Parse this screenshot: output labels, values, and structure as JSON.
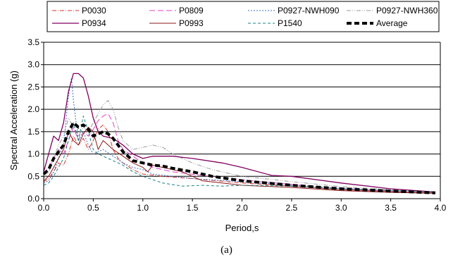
{
  "caption": "(a)",
  "chart_data": {
    "type": "line",
    "title": "",
    "xlabel": "Period,s",
    "ylabel": "Spectral  Acceleration (g)",
    "xlim": [
      0,
      4
    ],
    "ylim": [
      0,
      3.5
    ],
    "xticks": [
      "0.0",
      "0.5",
      "1.0",
      "1.5",
      "2.0",
      "2.5",
      "3.0",
      "3.5",
      "4.0"
    ],
    "yticks": [
      "0.0",
      "0.5",
      "1.0",
      "1.5",
      "2.0",
      "2.5",
      "3.0",
      "3.5"
    ],
    "grid": "horizontal",
    "legend_position": "top",
    "series": [
      {
        "name": "P0030",
        "color": "#d0342c",
        "dash": "6,2,1,2",
        "width": 1,
        "points": [
          [
            0,
            0.38
          ],
          [
            0.05,
            0.45
          ],
          [
            0.1,
            0.6
          ],
          [
            0.15,
            0.8
          ],
          [
            0.2,
            0.75
          ],
          [
            0.25,
            1.0
          ],
          [
            0.3,
            1.4
          ],
          [
            0.35,
            1.2
          ],
          [
            0.4,
            1.35
          ],
          [
            0.45,
            1.1
          ],
          [
            0.5,
            1.3
          ],
          [
            0.55,
            1.55
          ],
          [
            0.6,
            1.65
          ],
          [
            0.65,
            1.5
          ],
          [
            0.7,
            1.1
          ],
          [
            0.75,
            0.9
          ],
          [
            0.8,
            0.8
          ],
          [
            0.9,
            0.65
          ],
          [
            1.0,
            0.55
          ],
          [
            1.2,
            0.5
          ],
          [
            1.5,
            0.45
          ],
          [
            2.0,
            0.35
          ],
          [
            2.5,
            0.28
          ],
          [
            3.0,
            0.2
          ],
          [
            3.5,
            0.16
          ],
          [
            3.95,
            0.13
          ]
        ]
      },
      {
        "name": "P0809",
        "color": "#e040c8",
        "dash": "8,4",
        "width": 1,
        "points": [
          [
            0,
            0.55
          ],
          [
            0.05,
            0.7
          ],
          [
            0.1,
            0.9
          ],
          [
            0.15,
            1.1
          ],
          [
            0.2,
            1.0
          ],
          [
            0.25,
            1.3
          ],
          [
            0.3,
            1.6
          ],
          [
            0.35,
            1.3
          ],
          [
            0.4,
            1.5
          ],
          [
            0.45,
            1.4
          ],
          [
            0.5,
            1.55
          ],
          [
            0.55,
            1.75
          ],
          [
            0.6,
            1.85
          ],
          [
            0.65,
            1.9
          ],
          [
            0.7,
            1.7
          ],
          [
            0.75,
            1.3
          ],
          [
            0.8,
            1.1
          ],
          [
            0.9,
            0.95
          ],
          [
            1.0,
            0.8
          ],
          [
            1.1,
            0.7
          ],
          [
            1.3,
            0.6
          ],
          [
            1.6,
            0.52
          ],
          [
            2.0,
            0.42
          ],
          [
            2.5,
            0.32
          ],
          [
            3.0,
            0.22
          ],
          [
            3.5,
            0.17
          ],
          [
            3.95,
            0.14
          ]
        ]
      },
      {
        "name": "P0927-NWH090",
        "color": "#3a6fc4",
        "dash": "2,2",
        "width": 1,
        "points": [
          [
            0,
            0.35
          ],
          [
            0.05,
            0.4
          ],
          [
            0.1,
            0.6
          ],
          [
            0.15,
            0.9
          ],
          [
            0.2,
            1.2
          ],
          [
            0.25,
            2.3
          ],
          [
            0.28,
            2.7
          ],
          [
            0.3,
            2.2
          ],
          [
            0.35,
            1.3
          ],
          [
            0.4,
            1.5
          ],
          [
            0.45,
            1.2
          ],
          [
            0.5,
            1.0
          ],
          [
            0.6,
            1.1
          ],
          [
            0.7,
            0.95
          ],
          [
            0.8,
            0.8
          ],
          [
            0.9,
            0.7
          ],
          [
            1.0,
            0.65
          ],
          [
            1.1,
            0.55
          ],
          [
            1.3,
            0.5
          ],
          [
            1.5,
            0.45
          ],
          [
            2.0,
            0.38
          ],
          [
            2.5,
            0.3
          ],
          [
            3.0,
            0.23
          ],
          [
            3.5,
            0.18
          ],
          [
            3.95,
            0.15
          ]
        ]
      },
      {
        "name": "P0927-NWH360",
        "color": "#999999",
        "dash": "6,2,1,2,1,2",
        "width": 1,
        "points": [
          [
            0,
            0.45
          ],
          [
            0.05,
            0.6
          ],
          [
            0.1,
            0.9
          ],
          [
            0.15,
            1.2
          ],
          [
            0.2,
            1.4
          ],
          [
            0.25,
            1.8
          ],
          [
            0.3,
            1.6
          ],
          [
            0.35,
            1.4
          ],
          [
            0.4,
            1.6
          ],
          [
            0.45,
            1.5
          ],
          [
            0.5,
            1.7
          ],
          [
            0.55,
            1.9
          ],
          [
            0.6,
            2.1
          ],
          [
            0.65,
            2.2
          ],
          [
            0.7,
            2.0
          ],
          [
            0.75,
            1.6
          ],
          [
            0.8,
            1.3
          ],
          [
            0.9,
            1.1
          ],
          [
            1.0,
            1.15
          ],
          [
            1.1,
            1.2
          ],
          [
            1.2,
            1.15
          ],
          [
            1.3,
            1.0
          ],
          [
            1.5,
            0.8
          ],
          [
            1.7,
            0.65
          ],
          [
            2.0,
            0.5
          ],
          [
            2.5,
            0.38
          ],
          [
            3.0,
            0.27
          ],
          [
            3.5,
            0.2
          ],
          [
            3.95,
            0.15
          ]
        ]
      },
      {
        "name": "P0934",
        "color": "#800060",
        "dash": "",
        "width": 1.3,
        "points": [
          [
            0,
            0.6
          ],
          [
            0.05,
            1.0
          ],
          [
            0.1,
            1.4
          ],
          [
            0.15,
            1.3
          ],
          [
            0.2,
            1.7
          ],
          [
            0.25,
            2.4
          ],
          [
            0.3,
            2.8
          ],
          [
            0.35,
            2.8
          ],
          [
            0.4,
            2.7
          ],
          [
            0.45,
            2.3
          ],
          [
            0.5,
            1.8
          ],
          [
            0.55,
            1.5
          ],
          [
            0.6,
            1.4
          ],
          [
            0.7,
            1.35
          ],
          [
            0.8,
            1.2
          ],
          [
            0.9,
            1.0
          ],
          [
            1.0,
            0.9
          ],
          [
            1.1,
            0.95
          ],
          [
            1.3,
            0.95
          ],
          [
            1.5,
            0.9
          ],
          [
            1.8,
            0.8
          ],
          [
            2.0,
            0.7
          ],
          [
            2.3,
            0.52
          ],
          [
            2.5,
            0.5
          ],
          [
            3.0,
            0.35
          ],
          [
            3.5,
            0.22
          ],
          [
            3.95,
            0.15
          ]
        ]
      },
      {
        "name": "P0993",
        "color": "#8b1a1a",
        "dash": "",
        "width": 1,
        "points": [
          [
            0,
            0.4
          ],
          [
            0.05,
            0.5
          ],
          [
            0.1,
            0.7
          ],
          [
            0.15,
            0.9
          ],
          [
            0.2,
            1.1
          ],
          [
            0.25,
            1.5
          ],
          [
            0.3,
            1.3
          ],
          [
            0.35,
            1.2
          ],
          [
            0.4,
            1.45
          ],
          [
            0.45,
            1.6
          ],
          [
            0.5,
            1.5
          ],
          [
            0.55,
            1.1
          ],
          [
            0.6,
            1.3
          ],
          [
            0.65,
            1.2
          ],
          [
            0.7,
            1.1
          ],
          [
            0.8,
            0.95
          ],
          [
            0.9,
            0.8
          ],
          [
            1.0,
            0.7
          ],
          [
            1.05,
            0.6
          ],
          [
            1.1,
            0.75
          ],
          [
            1.2,
            0.7
          ],
          [
            1.4,
            0.6
          ],
          [
            1.6,
            0.4
          ],
          [
            1.8,
            0.35
          ],
          [
            2.0,
            0.3
          ],
          [
            2.5,
            0.25
          ],
          [
            3.0,
            0.18
          ],
          [
            3.5,
            0.14
          ],
          [
            3.95,
            0.12
          ]
        ]
      },
      {
        "name": "P1540",
        "color": "#1a8080",
        "dash": "4,3",
        "width": 1,
        "points": [
          [
            0,
            0.3
          ],
          [
            0.05,
            0.35
          ],
          [
            0.1,
            0.5
          ],
          [
            0.15,
            0.7
          ],
          [
            0.2,
            0.9
          ],
          [
            0.25,
            1.3
          ],
          [
            0.3,
            1.7
          ],
          [
            0.35,
            1.3
          ],
          [
            0.4,
            1.85
          ],
          [
            0.45,
            1.5
          ],
          [
            0.5,
            1.1
          ],
          [
            0.55,
            1.0
          ],
          [
            0.6,
            0.95
          ],
          [
            0.7,
            0.85
          ],
          [
            0.8,
            0.75
          ],
          [
            0.9,
            0.6
          ],
          [
            1.0,
            0.5
          ],
          [
            1.2,
            0.35
          ],
          [
            1.4,
            0.28
          ],
          [
            1.6,
            0.3
          ],
          [
            1.8,
            0.28
          ],
          [
            2.0,
            0.3
          ],
          [
            2.5,
            0.28
          ],
          [
            3.0,
            0.22
          ],
          [
            3.5,
            0.18
          ],
          [
            3.95,
            0.15
          ]
        ]
      },
      {
        "name": "Average",
        "color": "#000000",
        "dash": "7,4",
        "width": 4,
        "points": [
          [
            0,
            0.55
          ],
          [
            0.05,
            0.65
          ],
          [
            0.1,
            0.9
          ],
          [
            0.15,
            1.05
          ],
          [
            0.2,
            1.2
          ],
          [
            0.25,
            1.5
          ],
          [
            0.3,
            1.7
          ],
          [
            0.35,
            1.6
          ],
          [
            0.4,
            1.65
          ],
          [
            0.45,
            1.55
          ],
          [
            0.5,
            1.4
          ],
          [
            0.55,
            1.45
          ],
          [
            0.6,
            1.5
          ],
          [
            0.65,
            1.45
          ],
          [
            0.7,
            1.35
          ],
          [
            0.8,
            1.05
          ],
          [
            0.9,
            0.85
          ],
          [
            1.0,
            0.8
          ],
          [
            1.1,
            0.75
          ],
          [
            1.2,
            0.73
          ],
          [
            1.3,
            0.68
          ],
          [
            1.5,
            0.6
          ],
          [
            1.7,
            0.5
          ],
          [
            2.0,
            0.4
          ],
          [
            2.5,
            0.3
          ],
          [
            3.0,
            0.22
          ],
          [
            3.5,
            0.17
          ],
          [
            3.95,
            0.13
          ]
        ]
      }
    ]
  }
}
